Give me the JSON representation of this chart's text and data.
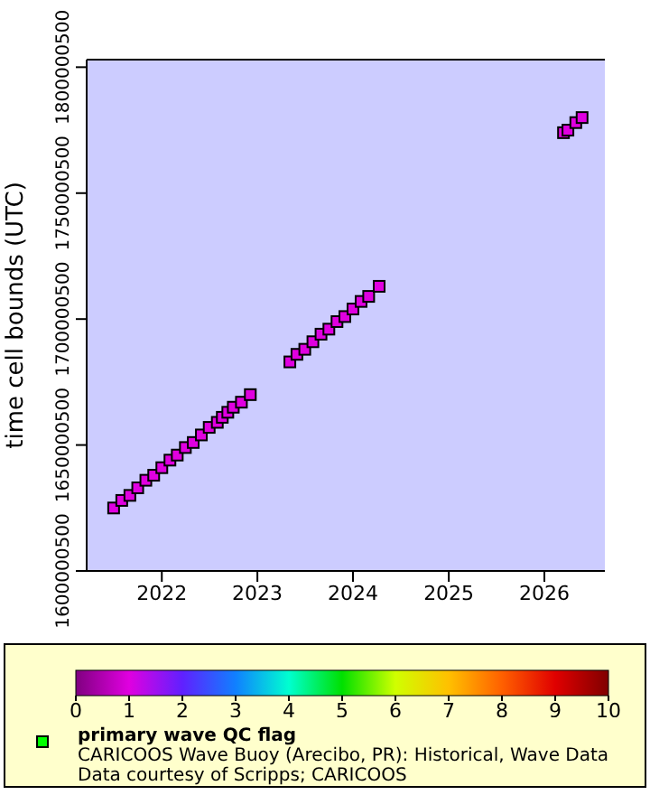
{
  "chart_data": {
    "type": "scatter",
    "ylabel": "time cell bounds (UTC)",
    "clabel": "primary wave QC flag",
    "annotations": [
      "CARICOOS Wave Buoy (Arecibo, PR): Historical, Wave Data",
      "Data courtesy of Scripps; CARICOOS"
    ],
    "x": [
      "2021-07-01",
      "2021-08-01",
      "2021-09-01",
      "2021-10-01",
      "2021-11-01",
      "2021-12-01",
      "2022-01-01",
      "2022-02-01",
      "2022-03-01",
      "2022-04-01",
      "2022-05-01",
      "2022-06-01",
      "2022-07-01",
      "2022-08-01",
      "2022-08-20",
      "2022-09-10",
      "2022-10-01",
      "2022-11-01",
      "2022-12-05",
      "2023-05-05",
      "2023-06-01",
      "2023-07-01",
      "2023-08-01",
      "2023-09-01",
      "2023-10-01",
      "2023-11-01",
      "2023-12-01",
      "2024-01-01",
      "2024-02-01",
      "2024-03-01",
      "2024-04-10",
      "2026-03-15",
      "2026-04-01",
      "2026-05-01",
      "2026-05-25"
    ],
    "values": [
      1625000000,
      1628000000,
      1630000000,
      1633000000,
      1636000000,
      1638000000,
      1641000000,
      1644000000,
      1646000000,
      1649000000,
      1651000000,
      1654000000,
      1657000000,
      1659000000,
      1661000000,
      1663000000,
      1665000000,
      1667000000,
      1670000000,
      1683000000,
      1686000000,
      1688000000,
      1691000000,
      1694000000,
      1696000000,
      1699000000,
      1701000000,
      1704000000,
      1707000000,
      1709000000,
      1713000000,
      1774000000,
      1775000000,
      1778000000,
      1780000000
    ],
    "cvalues": [
      1,
      1,
      1,
      1,
      1,
      1,
      1,
      1,
      1,
      1,
      1,
      1,
      1,
      1,
      1,
      1,
      1,
      1,
      1,
      1,
      1,
      1,
      1,
      1,
      1,
      1,
      1,
      1,
      1,
      1,
      1,
      1,
      1,
      1,
      1
    ],
    "clim": [
      0,
      10
    ],
    "cticks": [
      0,
      1,
      2,
      3,
      4,
      5,
      6,
      7,
      8,
      9,
      10
    ],
    "marker": "square",
    "xlim": [
      "2021-03-20",
      "2026-08-20"
    ],
    "xticks": [
      {
        "value": "2022",
        "label": "2022"
      },
      {
        "value": "2023",
        "label": "2023"
      },
      {
        "value": "2024",
        "label": "2024"
      },
      {
        "value": "2025",
        "label": "2025"
      },
      {
        "value": "2026",
        "label": "2026"
      }
    ],
    "ylim": [
      1600000500,
      1803000000
    ],
    "yticks": [
      1600000500,
      1650000500,
      1700000500,
      1750000500,
      1800000500
    ]
  }
}
